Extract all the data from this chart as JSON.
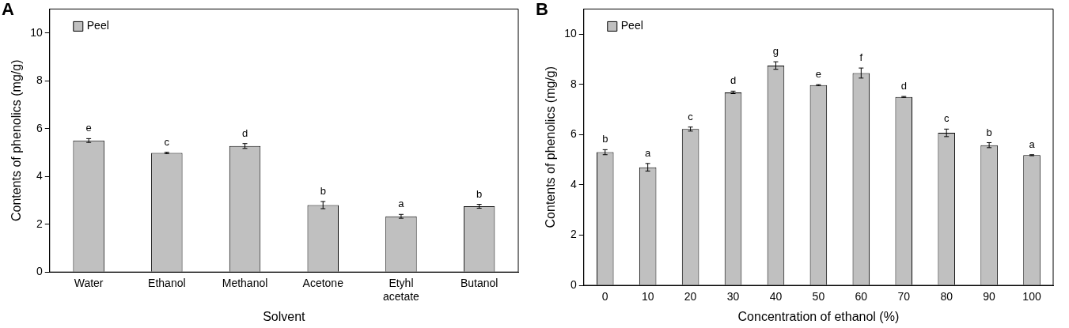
{
  "chart_data": [
    {
      "type": "bar",
      "title": "A",
      "xlabel": "Solvent",
      "ylabel": "Contents of phenolics (mg/g)",
      "categories": [
        "Water",
        "Ethanol",
        "Methanol",
        "Acetone",
        "Etyhl acetate",
        "Butanol"
      ],
      "series": [
        {
          "name": "Peel",
          "color": "#c0c0c0",
          "values": [
            5.5,
            4.98,
            5.27,
            2.8,
            2.33,
            2.75
          ],
          "errors": [
            0.08,
            0.03,
            0.1,
            0.15,
            0.08,
            0.08
          ],
          "value_labels": [
            "e",
            "c",
            "d",
            "b",
            "a",
            "b"
          ]
        }
      ],
      "ylim": [
        0,
        11
      ],
      "yticks": [
        0,
        2,
        4,
        6,
        8,
        10
      ],
      "grid": false,
      "legend": "top left"
    },
    {
      "type": "bar",
      "title": "B",
      "xlabel": "Concentration of ethanol (%)",
      "ylabel": "Contents of phenolics (mg/g)",
      "categories": [
        "0",
        "10",
        "20",
        "30",
        "40",
        "50",
        "60",
        "70",
        "80",
        "90",
        "100"
      ],
      "series": [
        {
          "name": "Peel",
          "color": "#c0c0c0",
          "values": [
            5.3,
            4.7,
            6.22,
            7.68,
            8.75,
            7.97,
            8.45,
            7.5,
            6.07,
            5.58,
            5.18
          ],
          "errors": [
            0.1,
            0.15,
            0.08,
            0.05,
            0.15,
            0.02,
            0.2,
            0.02,
            0.15,
            0.1,
            0.02
          ],
          "value_labels": [
            "b",
            "a",
            "c",
            "d",
            "g",
            "e",
            "f",
            "d",
            "c",
            "b",
            "a"
          ]
        }
      ],
      "ylim": [
        0,
        11
      ],
      "yticks": [
        0,
        2,
        4,
        6,
        8,
        10
      ],
      "grid": false,
      "legend": "top left"
    }
  ]
}
